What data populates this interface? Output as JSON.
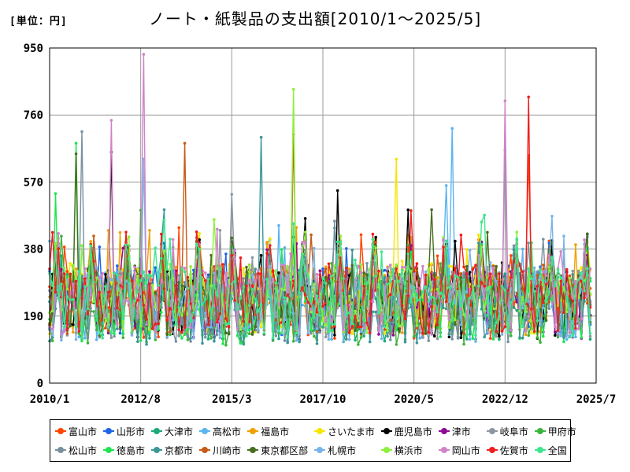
{
  "unit_label": "[単位：円]",
  "chart_data": {
    "type": "line",
    "title": "ノート・紙製品の支出額[2010/1～2025/5]",
    "xlabel": "",
    "ylabel": "",
    "ylim": [
      0,
      950
    ],
    "y_ticks": [
      "0",
      "190",
      "380",
      "570",
      "760",
      "950"
    ],
    "x_tick_labels": [
      "2010/1",
      "2012/8",
      "2015/3",
      "2017/10",
      "2020/5",
      "2022/12",
      "2025/7"
    ],
    "x_range_months": [
      "2010/1",
      "2025/7"
    ],
    "grid": true,
    "legend_position": "bottom",
    "series": [
      {
        "name": "富山市",
        "color": "#ff4500"
      },
      {
        "name": "山形市",
        "color": "#1e64e6"
      },
      {
        "name": "大津市",
        "color": "#1aaa78"
      },
      {
        "name": "高松市",
        "color": "#5ab4f0"
      },
      {
        "name": "福島市",
        "color": "#f0a000"
      },
      {
        "name": "さいたま市",
        "color": "#f5e600"
      },
      {
        "name": "鹿児島市",
        "color": "#000000"
      },
      {
        "name": "津市",
        "color": "#8c0a96"
      },
      {
        "name": "岐阜市",
        "color": "#8c96a0"
      },
      {
        "name": "甲府市",
        "color": "#3cb43c"
      },
      {
        "name": "松山市",
        "color": "#7890a0"
      },
      {
        "name": "徳島市",
        "color": "#1ee650"
      },
      {
        "name": "京都市",
        "color": "#3c9696"
      },
      {
        "name": "川崎市",
        "color": "#c85a14"
      },
      {
        "name": "東京都区部",
        "color": "#466e1e"
      },
      {
        "name": "札幌市",
        "color": "#78b4e6"
      },
      {
        "name": "横浜市",
        "color": "#8cf03c"
      },
      {
        "name": "岡山市",
        "color": "#d282c8"
      },
      {
        "name": "佐賀市",
        "color": "#f01e1e"
      },
      {
        "name": "全国",
        "color": "#3ce68c"
      }
    ],
    "highlights": [
      {
        "series": "岡山市",
        "x": "2012/9",
        "y": 932
      },
      {
        "series": "横浜市",
        "x": "2016/12",
        "y": 833
      },
      {
        "series": "佐賀市",
        "x": "2023/8",
        "y": 811
      },
      {
        "series": "岡山市",
        "x": "2022/12",
        "y": 800
      },
      {
        "series": "岡山市",
        "x": "2011/10",
        "y": 745
      },
      {
        "series": "高松市",
        "x": "2021/6",
        "y": 722
      },
      {
        "series": "松山市",
        "x": "2010/12",
        "y": 713
      },
      {
        "series": "川崎市",
        "x": "2016/12",
        "y": 705
      },
      {
        "series": "京都市",
        "x": "2016/1",
        "y": 697
      },
      {
        "series": "川崎市",
        "x": "2013/11",
        "y": 680
      },
      {
        "series": "徳島市",
        "x": "2010/10",
        "y": 680
      },
      {
        "series": "岐阜市",
        "x": "2022/12",
        "y": 660
      },
      {
        "series": "鹿児島市",
        "x": "2011/10",
        "y": 655
      },
      {
        "series": "東京都区部",
        "x": "2010/10",
        "y": 650
      },
      {
        "series": "富山市",
        "x": "2023/8",
        "y": 645
      },
      {
        "series": "札幌市",
        "x": "2012/9",
        "y": 635
      },
      {
        "series": "さいたま市",
        "x": "2019/11",
        "y": 635
      }
    ]
  }
}
